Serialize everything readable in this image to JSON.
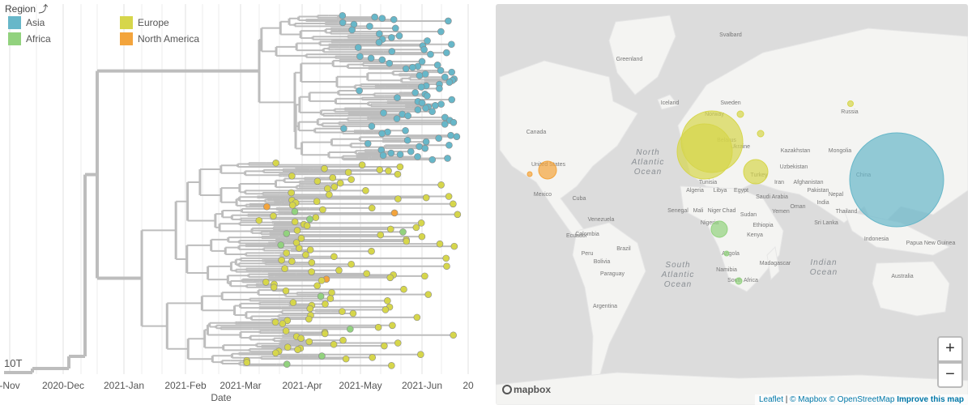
{
  "legend": {
    "title": "Region",
    "items": [
      {
        "label": "Asia",
        "color": "#67b7c9"
      },
      {
        "label": "Africa",
        "color": "#92d27e"
      },
      {
        "label": "Europe",
        "color": "#d6d64b"
      },
      {
        "label": "North America",
        "color": "#f3a43c"
      }
    ]
  },
  "tree": {
    "x_ticks": [
      "-Nov",
      "2020-Dec",
      "2021-Jan",
      "2021-Feb",
      "2021-Mar",
      "2021-Apr",
      "2021-May",
      "2021-Jun",
      "20"
    ],
    "axis_label": "Date",
    "scale_label": "10T"
  },
  "map": {
    "labels": [
      "Svalbard",
      "Greenland",
      "Iceland",
      "Sweden",
      "Norway",
      "Russia",
      "Canada",
      "United States",
      "Belarus",
      "Ukraine",
      "Kazakhstan",
      "Mongolia",
      "China",
      "Uzbekistan",
      "Turkey",
      "Iran",
      "Afghanistan",
      "Pakistan",
      "India",
      "Nepal",
      "Tunisia",
      "Algeria",
      "Libya",
      "Egypt",
      "Saudi Arabia",
      "Oman",
      "Yemen",
      "Mexico",
      "Cuba",
      "Venezuela",
      "Colombia",
      "Ecuador",
      "Peru",
      "Brazil",
      "Bolivia",
      "Paraguay",
      "Argentina",
      "Senegal",
      "Mali",
      "Niger",
      "Chad",
      "Sudan",
      "Nigeria",
      "Ethiopia",
      "Kenya",
      "Angola",
      "Namibia",
      "South Africa",
      "Madagascar",
      "Thailand",
      "Sri Lanka",
      "Indonesia",
      "Papua New Guinea",
      "Australia"
    ],
    "oceans": [
      {
        "lines": [
          "North",
          "Atlantic",
          "Ocean"
        ]
      },
      {
        "lines": [
          "South",
          "Atlantic",
          "Ocean"
        ]
      },
      {
        "lines": [
          "Indian",
          "Ocean"
        ]
      }
    ],
    "logo": "mapbox",
    "zoom_in": "+",
    "zoom_out": "−",
    "attribution": {
      "leaflet": "Leaflet",
      "mapbox": "© Mapbox",
      "osm": "© OpenStreetMap",
      "improve": "Improve this map"
    }
  }
}
